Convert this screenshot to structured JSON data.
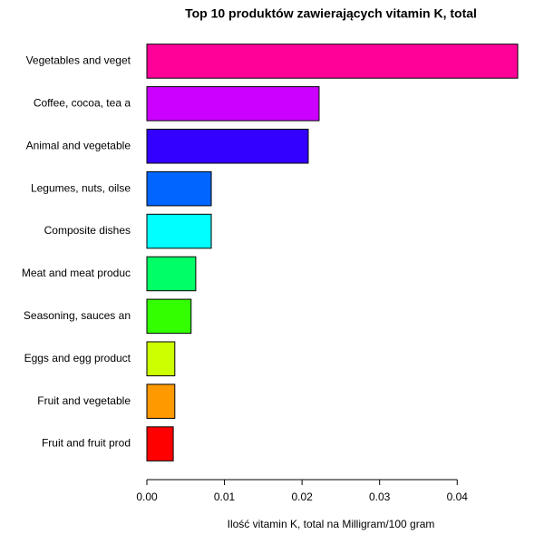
{
  "chart_data": {
    "type": "barh",
    "title": "Top 10 produktów zawierających vitamin K, total",
    "x_label": "Ilość vitamin K, total na Milligram/100 gram",
    "categories": [
      "Vegetables and veget",
      "Coffee, cocoa, tea a",
      "Animal and vegetable",
      "Legumes, nuts, oilse",
      "Composite dishes",
      "Meat and meat produc",
      "Seasoning, sauces an",
      "Eggs and egg product",
      "Fruit and vegetable ",
      "Fruit and fruit prod"
    ],
    "values": [
      0.0478,
      0.0222,
      0.0208,
      0.0083,
      0.0083,
      0.0063,
      0.0057,
      0.0036,
      0.0036,
      0.0034
    ],
    "colors": [
      "#FF0099",
      "#CC00FF",
      "#3300FF",
      "#0066FF",
      "#00FFFF",
      "#00FF66",
      "#33FF00",
      "#CCFF00",
      "#FF9900",
      "#FF0000"
    ],
    "xlim": [
      0,
      0.0478
    ],
    "xticks": [
      {
        "value": 0,
        "label": "0.00"
      },
      {
        "value": 0.01,
        "label": "0.01"
      },
      {
        "value": 0.02,
        "label": "0.02"
      },
      {
        "value": 0.03,
        "label": "0.03"
      },
      {
        "value": 0.04,
        "label": "0.04"
      }
    ]
  }
}
